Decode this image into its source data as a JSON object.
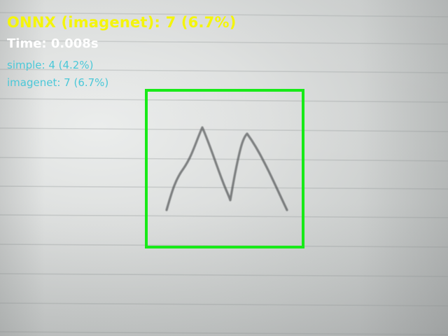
{
  "overlay": {
    "headline": "ONNX (imagenet): 7 (6.7%)",
    "time": "Time: 0.008s",
    "model_results": [
      "simple: 4 (4.2%)",
      "imagenet: 7 (6.7%)"
    ]
  },
  "colors": {
    "headline": "#f4f50a",
    "time": "#ffffff",
    "model_results": "#4bc8d8",
    "detection_box": "#18ea18"
  }
}
